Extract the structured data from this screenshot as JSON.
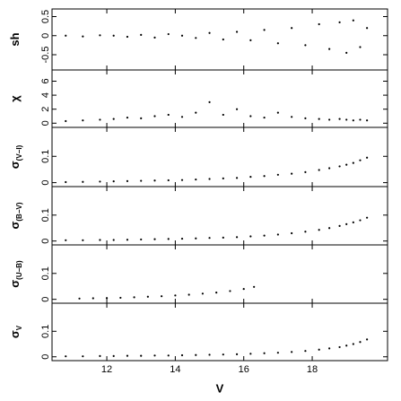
{
  "chart_data": {
    "type": "scatter",
    "xlabel": "V",
    "xlim": [
      10.4,
      20.2
    ],
    "xticks": [
      12,
      14,
      16,
      18
    ],
    "color": "#000000",
    "panels": [
      {
        "ylabel": "sh",
        "ylim": [
          -0.9,
          0.7
        ],
        "yticks": [
          -0.5,
          0,
          0.5
        ],
        "x": [
          10.8,
          11.3,
          11.8,
          12.2,
          12.6,
          13.0,
          13.4,
          13.8,
          14.2,
          14.6,
          15.0,
          15.4,
          15.8,
          16.2,
          16.6,
          17.0,
          17.4,
          17.8,
          18.2,
          18.5,
          18.8,
          19.0,
          19.2,
          19.4,
          19.6
        ],
        "values": [
          0.0,
          -0.02,
          0.01,
          0.0,
          -0.03,
          0.02,
          -0.05,
          0.04,
          0.0,
          -0.06,
          0.07,
          -0.1,
          0.1,
          -0.12,
          0.15,
          -0.2,
          0.2,
          -0.25,
          0.3,
          -0.35,
          0.35,
          -0.45,
          0.4,
          -0.3,
          0.2
        ]
      },
      {
        "ylabel": "χ",
        "ylim": [
          -0.6,
          7.6
        ],
        "yticks": [
          0,
          2,
          4,
          6
        ],
        "x": [
          10.8,
          11.3,
          11.8,
          12.2,
          12.6,
          13.0,
          13.4,
          13.8,
          14.2,
          14.6,
          15.0,
          15.4,
          15.8,
          16.2,
          16.6,
          17.0,
          17.4,
          17.8,
          18.2,
          18.5,
          18.8,
          19.0,
          19.2,
          19.4,
          19.6
        ],
        "values": [
          0.3,
          0.4,
          0.5,
          0.6,
          0.8,
          0.7,
          1.0,
          1.2,
          0.9,
          1.5,
          3.0,
          1.2,
          2.0,
          1.0,
          0.8,
          1.5,
          0.9,
          0.7,
          0.6,
          0.5,
          0.6,
          0.5,
          0.4,
          0.5,
          0.4
        ]
      },
      {
        "ylabel": "σ",
        "ylabel_sub": "(V−I)",
        "ylim": [
          -0.015,
          0.21
        ],
        "yticks": [
          0,
          0.1
        ],
        "x": [
          10.8,
          11.3,
          11.8,
          12.2,
          12.6,
          13.0,
          13.4,
          13.8,
          14.2,
          14.6,
          15.0,
          15.4,
          15.8,
          16.2,
          16.6,
          17.0,
          17.4,
          17.8,
          18.2,
          18.5,
          18.8,
          19.0,
          19.2,
          19.4,
          19.6
        ],
        "values": [
          0.002,
          0.003,
          0.004,
          0.005,
          0.006,
          0.007,
          0.008,
          0.009,
          0.01,
          0.012,
          0.014,
          0.016,
          0.018,
          0.022,
          0.025,
          0.03,
          0.034,
          0.04,
          0.048,
          0.055,
          0.062,
          0.068,
          0.075,
          0.085,
          0.095
        ]
      },
      {
        "ylabel": "σ",
        "ylabel_sub": "(B−V)",
        "ylim": [
          -0.015,
          0.21
        ],
        "yticks": [
          0,
          0.1
        ],
        "x": [
          10.8,
          11.3,
          11.8,
          12.2,
          12.6,
          13.0,
          13.4,
          13.8,
          14.2,
          14.6,
          15.0,
          15.4,
          15.8,
          16.2,
          16.6,
          17.0,
          17.4,
          17.8,
          18.2,
          18.5,
          18.8,
          19.0,
          19.2,
          19.4,
          19.6
        ],
        "values": [
          0.003,
          0.003,
          0.004,
          0.004,
          0.005,
          0.006,
          0.007,
          0.008,
          0.009,
          0.01,
          0.012,
          0.013,
          0.015,
          0.018,
          0.021,
          0.025,
          0.03,
          0.036,
          0.043,
          0.05,
          0.058,
          0.065,
          0.072,
          0.08,
          0.09
        ]
      },
      {
        "ylabel": "σ",
        "ylabel_sub": "(U−B)",
        "ylim": [
          -0.015,
          0.21
        ],
        "yticks": [
          0,
          0.1
        ],
        "x": [
          11.2,
          11.6,
          12.0,
          12.4,
          12.8,
          13.2,
          13.6,
          14.0,
          14.4,
          14.8,
          15.2,
          15.6,
          16.0,
          16.3
        ],
        "values": [
          0.003,
          0.004,
          0.005,
          0.006,
          0.008,
          0.01,
          0.012,
          0.015,
          0.018,
          0.022,
          0.026,
          0.032,
          0.04,
          0.048
        ]
      },
      {
        "ylabel": "σ",
        "ylabel_sub": "V",
        "ylim": [
          -0.015,
          0.21
        ],
        "yticks": [
          0,
          0.1
        ],
        "x": [
          10.8,
          11.3,
          11.8,
          12.2,
          12.6,
          13.0,
          13.4,
          13.8,
          14.2,
          14.6,
          15.0,
          15.4,
          15.8,
          16.2,
          16.6,
          17.0,
          17.4,
          17.8,
          18.2,
          18.5,
          18.8,
          19.0,
          19.2,
          19.4,
          19.6
        ],
        "values": [
          0.002,
          0.002,
          0.003,
          0.003,
          0.004,
          0.004,
          0.005,
          0.005,
          0.006,
          0.007,
          0.008,
          0.009,
          0.01,
          0.012,
          0.014,
          0.016,
          0.019,
          0.023,
          0.028,
          0.033,
          0.038,
          0.044,
          0.05,
          0.058,
          0.068
        ]
      }
    ]
  }
}
